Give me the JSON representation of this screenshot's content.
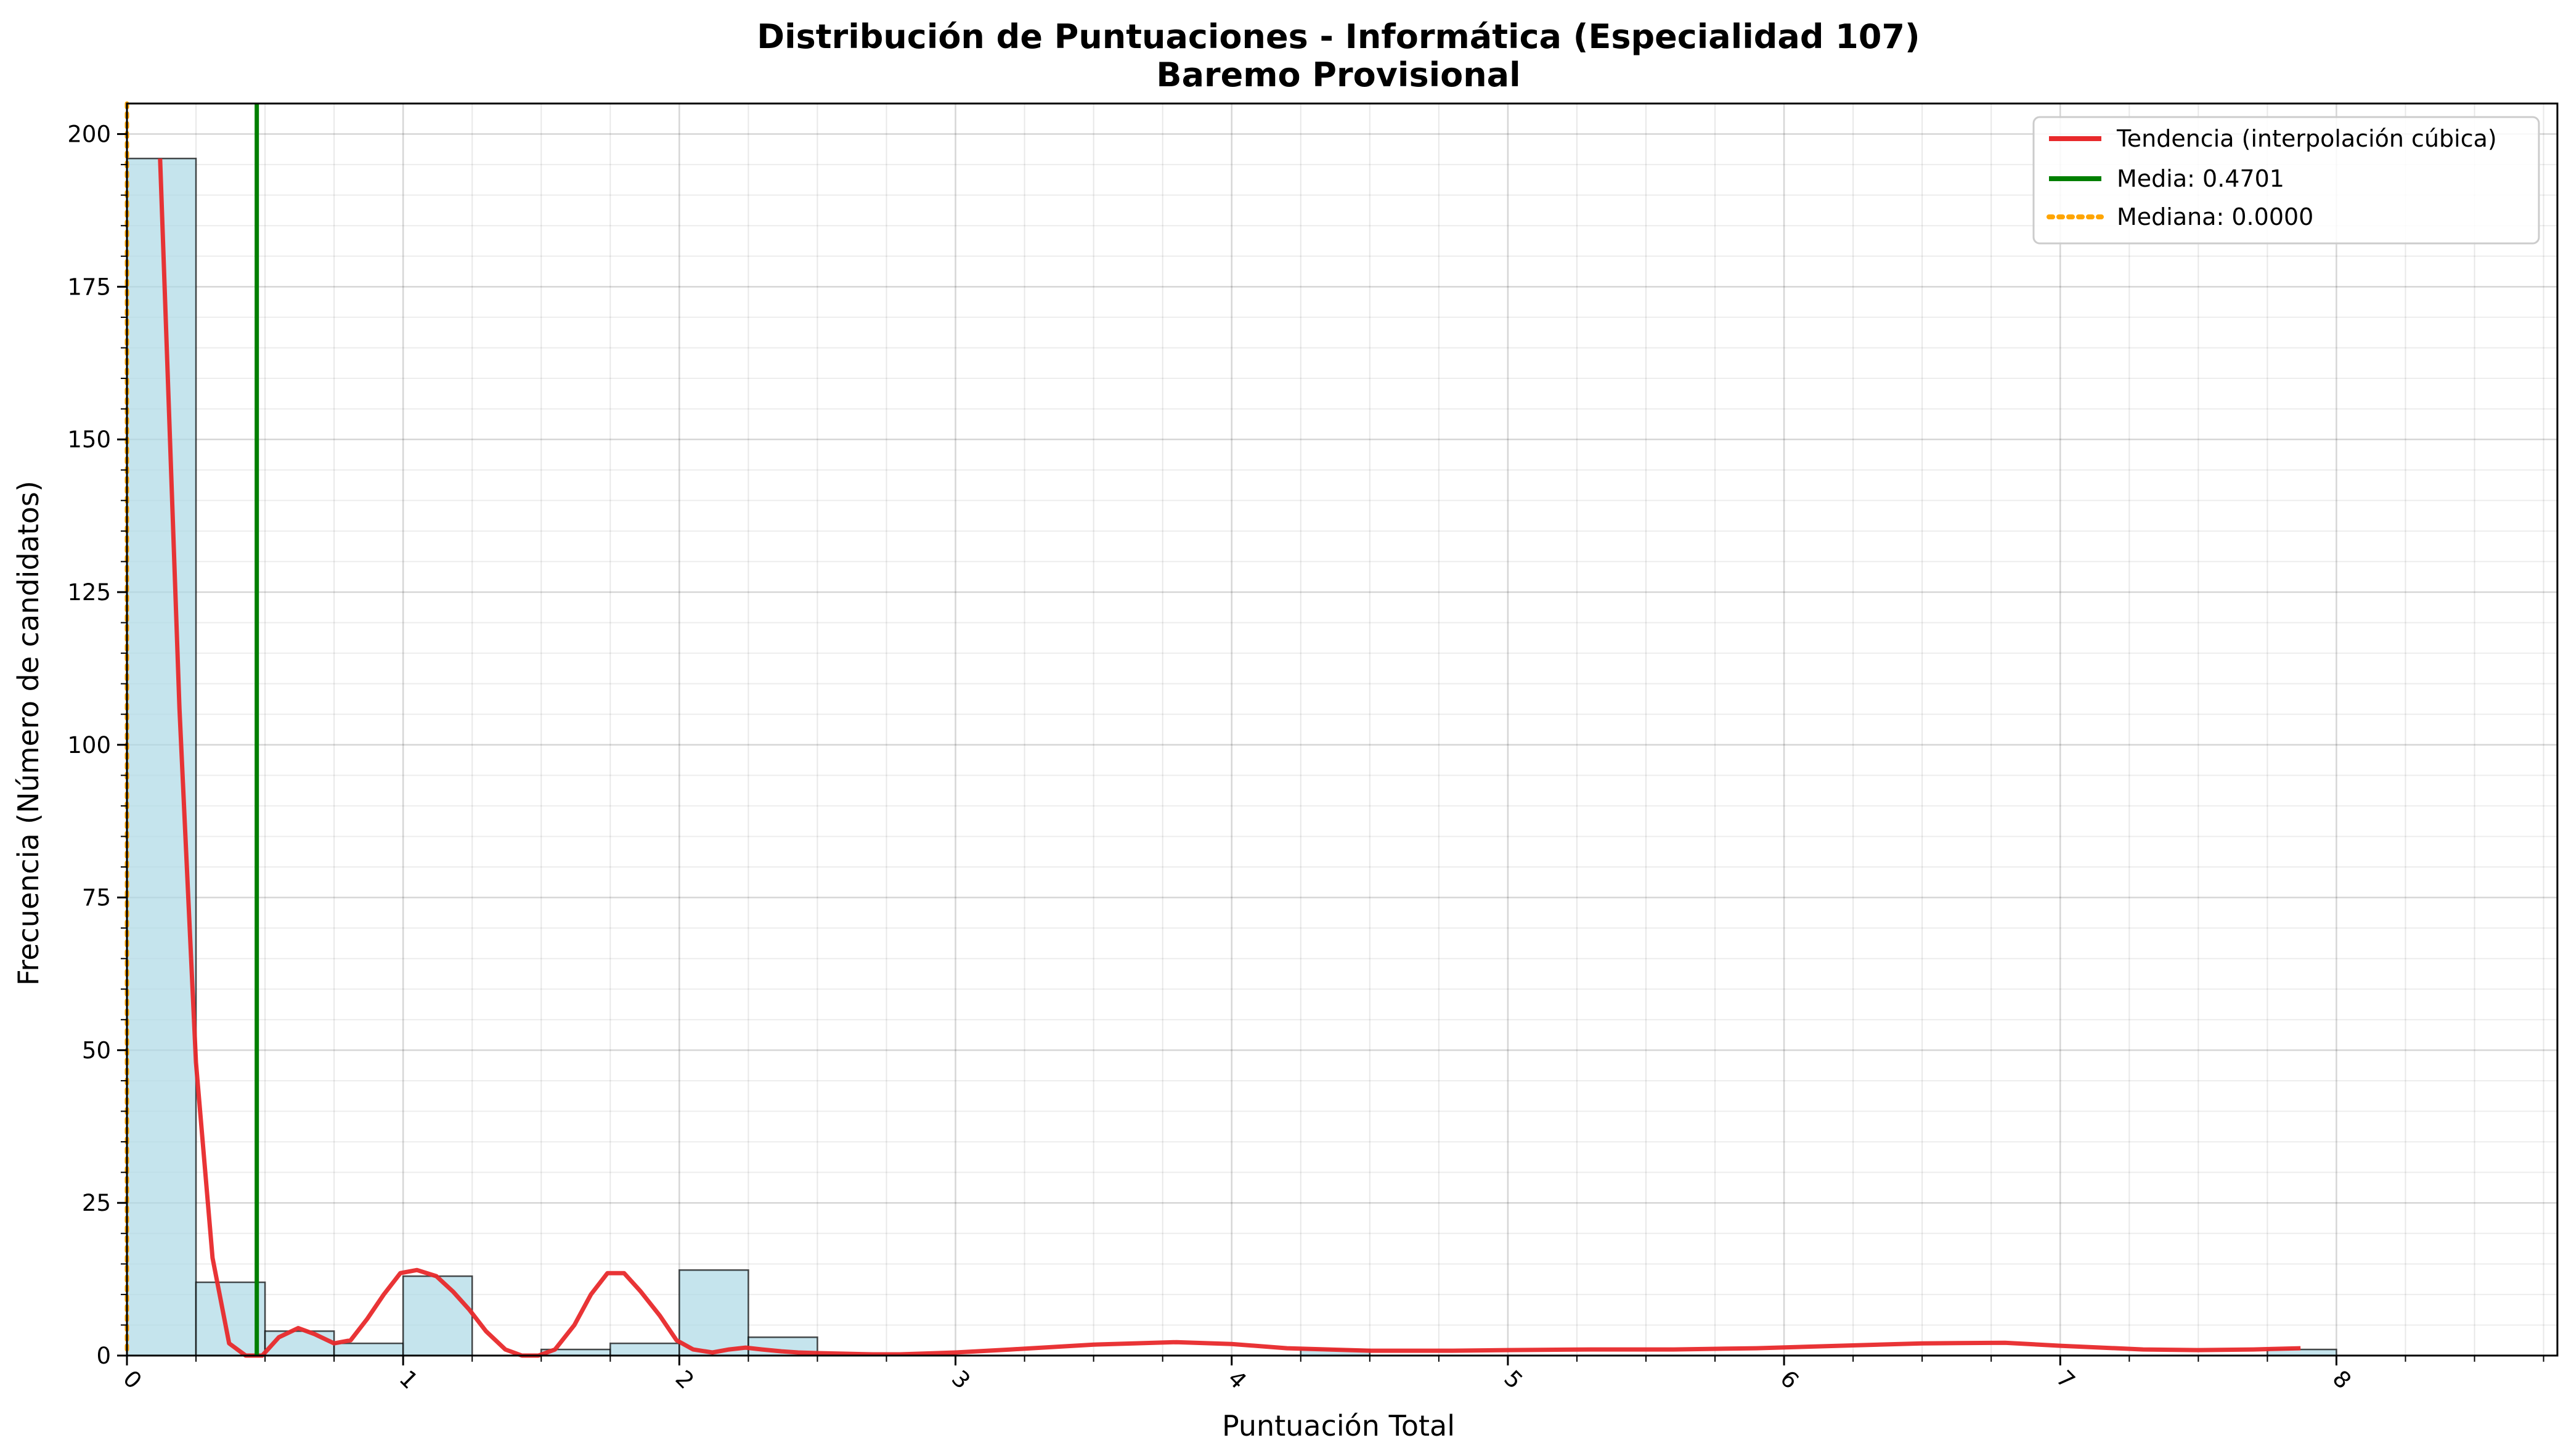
{
  "chart_data": {
    "type": "bar",
    "title": "Distribución de Puntuaciones - Informática (Especialidad 107)",
    "subtitle": "Baremo Provisional",
    "xlabel": "Puntuación Total",
    "ylabel": "Frecuencia (Número de candidatos)",
    "xlim": [
      0,
      8.8
    ],
    "ylim": [
      0,
      205
    ],
    "x_ticks": [
      "0",
      "1",
      "2",
      "3",
      "4",
      "5",
      "6",
      "7",
      "8"
    ],
    "y_ticks": [
      "0",
      "25",
      "50",
      "75",
      "100",
      "125",
      "150",
      "175",
      "200"
    ],
    "grid": true,
    "legend_position": "top-right",
    "histogram": {
      "bin_width": 0.25,
      "bin_starts": [
        0.0,
        0.25,
        0.5,
        0.75,
        1.0,
        1.25,
        1.5,
        1.75,
        2.0,
        2.25,
        2.5,
        2.75,
        3.0,
        3.25,
        3.5,
        3.75,
        4.0,
        4.25,
        4.5,
        4.75,
        5.0,
        5.25,
        5.5,
        5.75,
        6.0,
        6.25,
        6.5,
        6.75,
        7.0,
        7.25,
        7.5,
        7.75
      ],
      "counts": [
        196,
        12,
        4,
        2,
        13,
        0,
        1,
        2,
        14,
        3,
        0,
        0,
        0,
        0,
        0,
        0,
        0,
        1,
        0,
        0,
        0,
        0,
        0,
        0,
        0,
        0,
        0,
        0,
        0,
        0,
        0,
        1
      ],
      "fill_color": "#add8e6",
      "edge_color": "#000000"
    },
    "series": [
      {
        "name": "Tendencia (interpolación cúbica)",
        "type": "line",
        "color": "#e8292b",
        "x": [
          0.12,
          0.19,
          0.25,
          0.31,
          0.37,
          0.43,
          0.49,
          0.55,
          0.62,
          0.68,
          0.75,
          0.81,
          0.87,
          0.93,
          0.99,
          1.05,
          1.12,
          1.18,
          1.24,
          1.3,
          1.37,
          1.43,
          1.49,
          1.55,
          1.62,
          1.68,
          1.74,
          1.8,
          1.86,
          1.93,
          1.99,
          2.05,
          2.12,
          2.18,
          2.24,
          2.3,
          2.37,
          2.43,
          2.5,
          2.6,
          2.7,
          2.8,
          3.0,
          3.2,
          3.5,
          3.8,
          4.0,
          4.2,
          4.5,
          4.8,
          5.0,
          5.3,
          5.6,
          5.9,
          6.2,
          6.5,
          6.8,
          7.0,
          7.3,
          7.5,
          7.7,
          7.87
        ],
        "y": [
          196,
          106,
          48,
          16,
          2,
          0,
          0,
          3,
          4.5,
          3.5,
          2,
          2.5,
          6,
          10,
          13.5,
          14,
          13,
          10.5,
          7.5,
          4,
          1,
          0,
          0,
          1,
          5,
          10,
          13.5,
          13.5,
          10.5,
          6.5,
          2.5,
          1,
          0.5,
          1,
          1.3,
          1.0,
          0.7,
          0.5,
          0.4,
          0.3,
          0.2,
          0.2,
          0.5,
          1.0,
          1.8,
          2.2,
          1.9,
          1.2,
          0.8,
          0.8,
          0.9,
          1.0,
          1.0,
          1.2,
          1.6,
          2.0,
          2.1,
          1.6,
          1.0,
          0.9,
          1.0,
          1.2
        ]
      },
      {
        "name": "Media: 0.4701",
        "type": "vline",
        "color": "#007f00",
        "x": 0.4701
      },
      {
        "name": "Mediana: 0.0000",
        "type": "vline",
        "color": "#ffa500",
        "style": "dotted",
        "x": 0.0
      }
    ]
  }
}
